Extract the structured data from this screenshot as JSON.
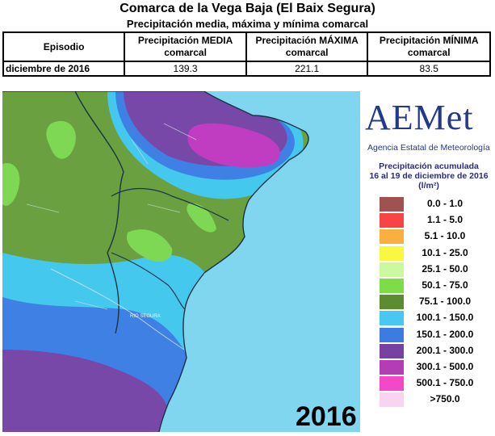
{
  "header": {
    "title": "Comarca de la Vega Baja (El Baix Segura)",
    "subtitle": "Precipitación media, máxima y mínima comarcal"
  },
  "table": {
    "headers": [
      "Episodio",
      "Precipitación MEDIA comarcal",
      "Precipitación MÁXIMA comarcal",
      "Precipitación MÍNIMA comarcal"
    ],
    "row": [
      "diciembre de 2016",
      "139.3",
      "221.1",
      "83.5"
    ]
  },
  "map": {
    "year_label": "2016",
    "river_label": "RIO SEGURA",
    "colors": {
      "sea": "#7fd6ee",
      "land_green": "#6aa040",
      "light_green": "#7ed854",
      "cyan": "#44c8ee",
      "blue": "#3f80e4",
      "purple": "#7848a8",
      "magenta": "#c03cc0"
    }
  },
  "logo": {
    "wordmark": "AEMet",
    "agency": "Agencia Estatal de Meteorología"
  },
  "legend": {
    "title_line1": "Precipitación acumulada",
    "title_line2": "16 al 19 de diciembre de 2016",
    "units": "(l/m²)",
    "items": [
      {
        "label": "0.0 - 1.0",
        "color": "#a05252"
      },
      {
        "label": "1.1 - 5.0",
        "color": "#f74444"
      },
      {
        "label": "5.1 - 10.0",
        "color": "#f8b040"
      },
      {
        "label": "10.1 - 25.0",
        "color": "#f8f840"
      },
      {
        "label": "25.1 - 50.0",
        "color": "#ccf8a0"
      },
      {
        "label": "50.1 - 75.0",
        "color": "#7edc48"
      },
      {
        "label": "75.1 - 100.0",
        "color": "#5c8c30"
      },
      {
        "label": "100.1 - 150.0",
        "color": "#48c8f0"
      },
      {
        "label": "150.1 - 200.0",
        "color": "#3c7ce0"
      },
      {
        "label": "200.1 - 300.0",
        "color": "#7840a0"
      },
      {
        "label": "300.1 - 500.0",
        "color": "#b43cb4"
      },
      {
        "label": "500.1 - 750.0",
        "color": "#f448c8"
      },
      {
        "label": ">750.0",
        "color": "#f8d4f0"
      }
    ]
  }
}
